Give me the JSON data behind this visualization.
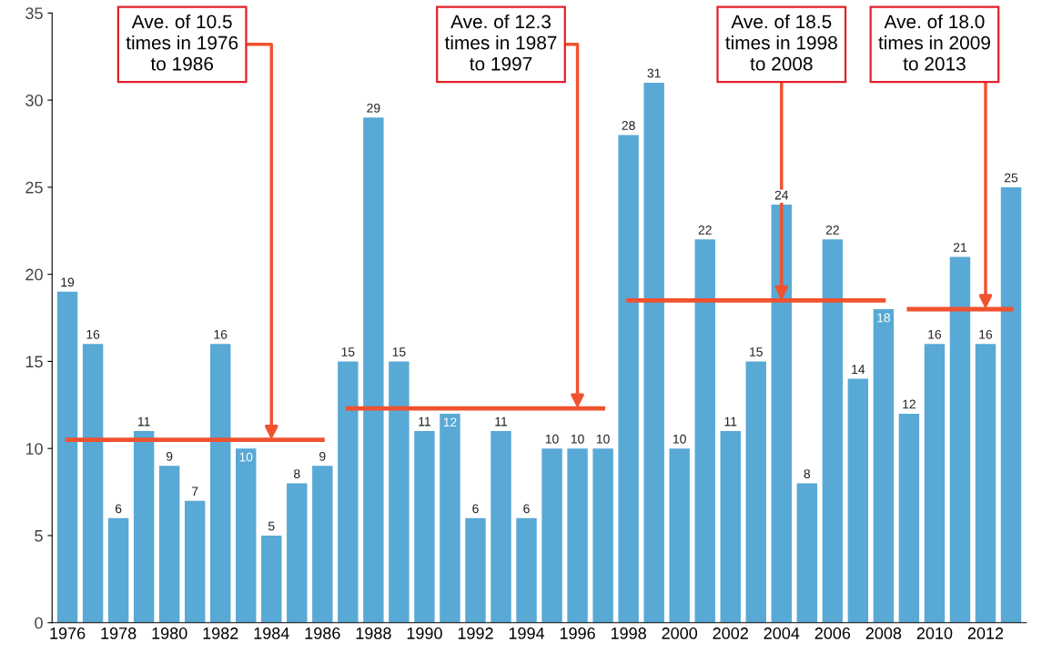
{
  "chart_data": {
    "type": "bar",
    "categories": [
      "1976",
      null,
      "1978",
      null,
      "1980",
      null,
      "1982",
      null,
      "1984",
      null,
      "1986",
      null,
      "1988",
      null,
      "1990",
      null,
      "1992",
      null,
      "1994",
      null,
      "1996",
      null,
      "1998",
      null,
      "2000",
      null,
      "2002",
      null,
      "2004",
      null,
      "2006",
      null,
      "2008",
      null,
      "2010",
      null,
      "2012",
      null
    ],
    "series": [
      {
        "color": "#58a9d5",
        "values": [
          19,
          16,
          6,
          11,
          9,
          7,
          16,
          10,
          5,
          8,
          9,
          15,
          29,
          15,
          11,
          12,
          6,
          11,
          6,
          10,
          10,
          10,
          28,
          31,
          10,
          22,
          11,
          15,
          24,
          8,
          22,
          14,
          18,
          12,
          16,
          21,
          16,
          25
        ],
        "value_labels": [
          "19",
          "16",
          "6",
          "11",
          "9",
          "7",
          "16",
          "10",
          "5",
          "8",
          "9",
          "15",
          "29",
          "15",
          "11",
          "12",
          "6",
          "11",
          "6",
          "10",
          "10",
          "10",
          "28",
          "31",
          "10",
          "22",
          "11",
          "15",
          "24",
          "8",
          "22",
          "14",
          "18",
          "12",
          "16",
          "21",
          "16",
          "25"
        ]
      },
      {
        "type": "line",
        "color": "#f0522f",
        "values": [
          10.5,
          10.5,
          10.5,
          10.5,
          10.5,
          10.5,
          10.5,
          10.5,
          10.5,
          10.5,
          10.5,
          null,
          null,
          null,
          null,
          null,
          null,
          null,
          null,
          null,
          null,
          null,
          null,
          null,
          null,
          null,
          null,
          null,
          null,
          null,
          null,
          null,
          null,
          null,
          null,
          null,
          null,
          null
        ]
      },
      {
        "type": "line",
        "color": "#f0522f",
        "values": [
          null,
          null,
          null,
          null,
          null,
          null,
          null,
          null,
          null,
          null,
          null,
          12.3,
          12.3,
          12.3,
          12.3,
          12.3,
          12.3,
          12.3,
          12.3,
          12.3,
          12.3,
          12.3,
          null,
          null,
          null,
          null,
          null,
          null,
          null,
          null,
          null,
          null,
          null,
          null,
          null,
          null,
          null,
          null
        ]
      },
      {
        "type": "line",
        "color": "#f0522f",
        "values": [
          null,
          null,
          null,
          null,
          null,
          null,
          null,
          null,
          null,
          null,
          null,
          null,
          null,
          null,
          null,
          null,
          null,
          null,
          null,
          null,
          null,
          null,
          18.5,
          18.5,
          18.5,
          18.5,
          18.5,
          18.5,
          18.5,
          18.5,
          18.5,
          18.5,
          18.5,
          null,
          null,
          null,
          null,
          null
        ]
      },
      {
        "type": "line",
        "color": "#f0522f",
        "values": [
          null,
          null,
          null,
          null,
          null,
          null,
          null,
          null,
          null,
          null,
          null,
          null,
          null,
          null,
          null,
          null,
          null,
          null,
          null,
          null,
          null,
          null,
          null,
          null,
          null,
          null,
          null,
          null,
          null,
          null,
          null,
          null,
          null,
          18.0,
          18.0,
          18.0,
          18.0,
          18.0
        ]
      }
    ],
    "ylim": [
      0,
      35
    ],
    "yticks": [
      0,
      5,
      10,
      15,
      20,
      25,
      30,
      35
    ],
    "grid": false,
    "legend": false,
    "annotations": [
      {
        "text": "Ave. of 10.5\ntimes in 1976\nto 1986",
        "x": "1984",
        "y": 10.5
      },
      {
        "text": "Ave. of 12.3\ntimes in 1987\nto 1997",
        "x": "1996",
        "y": 12.3
      },
      {
        "text": "Ave. of 18.5\ntimes in 1998\nto 2008",
        "x": "2004",
        "y": 18.5
      },
      {
        "text": "Ave. of 18.0\ntimes in 2009\nto 2013",
        "x": "2012",
        "y": 18.0
      }
    ]
  }
}
